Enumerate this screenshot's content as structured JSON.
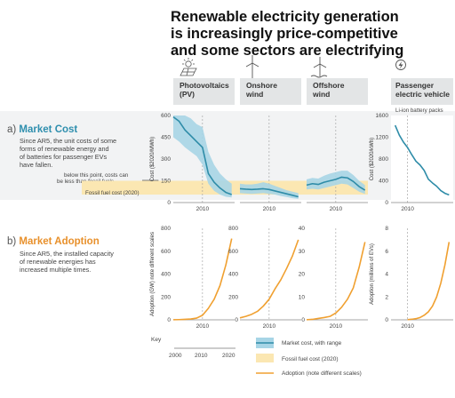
{
  "title_lines": [
    "Renewable electricity generation",
    "is increasingly price-competitive",
    "and some sectors are electrifying"
  ],
  "colors": {
    "cost_line": "#2e8ca8",
    "cost_range": "#a7d5e6",
    "fossil_band": "#fbe7b2",
    "adoption": "#f0a030",
    "section_a": "#2f8fae",
    "section_b": "#e8902b",
    "panel_bg": "#eef0f1",
    "header_bg": "#e2e4e5"
  },
  "section_a": {
    "label_prefix": "a) ",
    "label": "Market Cost",
    "desc": [
      "Since AR5, the unit costs of some",
      "forms of renewable energy and",
      "of batteries for passenger EVs",
      "have fallen."
    ],
    "note": [
      "below this point, costs can",
      "be less than fossil fuels"
    ],
    "fossil_label": "Fossil fuel cost (2020)"
  },
  "section_b": {
    "label_prefix": "b) ",
    "label": "Market Adoption",
    "desc": [
      "Since AR5, the installed capacity",
      "of renewable energies has",
      "increased multiple times."
    ]
  },
  "key": {
    "title": "Key",
    "ticks": [
      "2000",
      "2010",
      "2020"
    ],
    "items": [
      "Market cost, with range",
      "Fossil fuel cost (2020)",
      "Adoption (note different scales)"
    ]
  },
  "chart_data": [
    {
      "type": "line",
      "panel": "Photovoltaics (PV)",
      "header_lines": [
        "Photovoltaics",
        "(PV)"
      ],
      "icon": "solar-panel-icon",
      "ylabel": "Cost ($2020/MWh)",
      "ylim": [
        0,
        600
      ],
      "yticks": [
        "0",
        "150",
        "300",
        "450",
        "600"
      ],
      "x": [
        2000,
        2002,
        2004,
        2006,
        2008,
        2010,
        2012,
        2014,
        2016,
        2018,
        2020
      ],
      "series": [
        {
          "role": "cost",
          "y": [
            590,
            560,
            500,
            460,
            420,
            380,
            200,
            140,
            100,
            70,
            55
          ],
          "low": [
            450,
            420,
            380,
            350,
            320,
            260,
            130,
            80,
            55,
            40,
            35
          ],
          "high": [
            620,
            620,
            620,
            580,
            540,
            520,
            350,
            260,
            200,
            160,
            130
          ]
        },
        {
          "role": "fossil",
          "low": 55,
          "high": 150
        }
      ],
      "vline": 2010
    },
    {
      "type": "line",
      "panel": "Onshore wind",
      "header_lines": [
        "Onshore",
        "wind"
      ],
      "icon": "wind-turbine-icon",
      "ylim": [
        0,
        600
      ],
      "x": [
        2000,
        2002,
        2004,
        2006,
        2008,
        2010,
        2012,
        2014,
        2016,
        2018,
        2020
      ],
      "series": [
        {
          "role": "cost",
          "y": [
            95,
            92,
            90,
            92,
            95,
            90,
            80,
            70,
            60,
            50,
            40
          ],
          "low": [
            65,
            62,
            60,
            62,
            65,
            60,
            55,
            45,
            38,
            30,
            25
          ],
          "high": [
            130,
            125,
            125,
            130,
            140,
            130,
            115,
            100,
            85,
            75,
            65
          ]
        },
        {
          "role": "fossil",
          "low": 55,
          "high": 150
        }
      ],
      "vline": 2010
    },
    {
      "type": "line",
      "panel": "Offshore wind",
      "header_lines": [
        "Offshore",
        "wind"
      ],
      "icon": "offshore-wind-icon",
      "ylim": [
        0,
        600
      ],
      "x": [
        2000,
        2002,
        2004,
        2006,
        2008,
        2010,
        2012,
        2014,
        2016,
        2018,
        2020
      ],
      "series": [
        {
          "role": "cost",
          "y": [
            120,
            130,
            125,
            140,
            150,
            160,
            175,
            170,
            145,
            110,
            85
          ],
          "low": [
            90,
            95,
            90,
            100,
            110,
            120,
            130,
            125,
            100,
            75,
            60
          ],
          "high": [
            160,
            170,
            165,
            185,
            200,
            210,
            220,
            220,
            190,
            150,
            120
          ]
        },
        {
          "role": "fossil",
          "low": 55,
          "high": 150
        }
      ],
      "vline": 2010
    },
    {
      "type": "line",
      "panel": "Passenger electric vehicle",
      "header_lines": [
        "Passenger",
        "electric vehicle"
      ],
      "icon": "ev-charger-icon",
      "subtitle": "Li-ion battery packs",
      "ylabel": "Cost ($2020/kWh)",
      "ylim": [
        0,
        1600
      ],
      "yticks": [
        "0",
        "400",
        "800",
        "1200",
        "1600"
      ],
      "x": [
        2007,
        2008,
        2009,
        2010,
        2011,
        2012,
        2013,
        2014,
        2015,
        2016,
        2017,
        2018,
        2019,
        2020
      ],
      "series": [
        {
          "role": "cost",
          "y": [
            1420,
            1240,
            1110,
            1010,
            880,
            760,
            690,
            590,
            430,
            360,
            300,
            220,
            170,
            140
          ]
        }
      ],
      "vline": 2010
    },
    {
      "type": "line",
      "panel": "Photovoltaics (PV) adoption",
      "ylabel": "Adoption (GW) note different scales",
      "ylim": [
        0,
        800
      ],
      "yticks": [
        "0",
        "200",
        "400",
        "600",
        "800"
      ],
      "x": [
        2000,
        2002,
        2004,
        2006,
        2008,
        2010,
        2012,
        2014,
        2016,
        2018,
        2020
      ],
      "series": [
        {
          "role": "adoption",
          "y": [
            1,
            2,
            4,
            7,
            15,
            40,
            100,
            180,
            300,
            480,
            710
          ]
        }
      ],
      "vline": 2010
    },
    {
      "type": "line",
      "panel": "Onshore wind adoption",
      "ylim": [
        0,
        800
      ],
      "yticks": [
        "0",
        "200",
        "400",
        "600",
        "800"
      ],
      "x": [
        2000,
        2002,
        2004,
        2006,
        2008,
        2010,
        2012,
        2014,
        2016,
        2018,
        2020
      ],
      "series": [
        {
          "role": "adoption",
          "y": [
            17,
            30,
            48,
            74,
            120,
            180,
            270,
            350,
            450,
            560,
            700
          ]
        }
      ],
      "vline": 2010
    },
    {
      "type": "line",
      "panel": "Offshore wind adoption",
      "ylim": [
        0,
        40
      ],
      "yticks": [
        "0",
        "10",
        "20",
        "30",
        "40"
      ],
      "x": [
        2000,
        2002,
        2004,
        2006,
        2008,
        2010,
        2012,
        2014,
        2016,
        2018,
        2020
      ],
      "series": [
        {
          "role": "adoption",
          "y": [
            0.05,
            0.2,
            0.6,
            1,
            1.5,
            3,
            5.5,
            9,
            14,
            23,
            34
          ]
        }
      ],
      "vline": 2010
    },
    {
      "type": "line",
      "panel": "Passenger electric vehicle adoption",
      "ylabel": "Adoption (millions of EVs)",
      "ylim": [
        0,
        8
      ],
      "yticks": [
        "0",
        "2",
        "4",
        "6",
        "8"
      ],
      "x": [
        2010,
        2011,
        2012,
        2013,
        2014,
        2015,
        2016,
        2017,
        2018,
        2019,
        2020
      ],
      "series": [
        {
          "role": "adoption",
          "y": [
            0.02,
            0.05,
            0.1,
            0.2,
            0.4,
            0.7,
            1.2,
            2,
            3.2,
            4.8,
            6.8
          ]
        }
      ],
      "vline": 2010
    }
  ],
  "xtick_label": "2010"
}
